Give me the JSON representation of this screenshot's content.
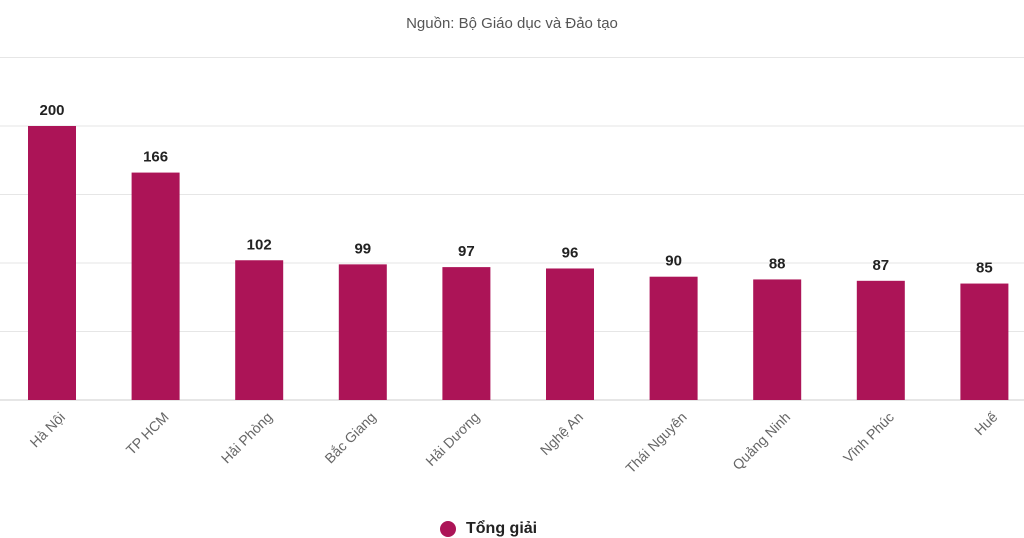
{
  "subtitle": "Nguồn: Bộ Giáo dục và Đảo tạo",
  "chart_data": {
    "type": "bar",
    "title": "",
    "subtitle": "Nguồn: Bộ Giáo dục và Đảo tạo",
    "categories": [
      "Hà Nội",
      "TP HCM",
      "Hải Phòng",
      "Bắc Giang",
      "Hải Dương",
      "Nghệ An",
      "Thái Nguyên",
      "Quảng Ninh",
      "Vĩnh Phúc",
      "Huế"
    ],
    "series": [
      {
        "name": "Tổng giải",
        "values": [
          200,
          166,
          102,
          99,
          97,
          96,
          90,
          88,
          87,
          85
        ]
      }
    ],
    "xlabel": "",
    "ylabel": "",
    "ylim": [
      0,
      200
    ],
    "grid": true,
    "legend": "bottom-center",
    "color": "#ac1457"
  }
}
